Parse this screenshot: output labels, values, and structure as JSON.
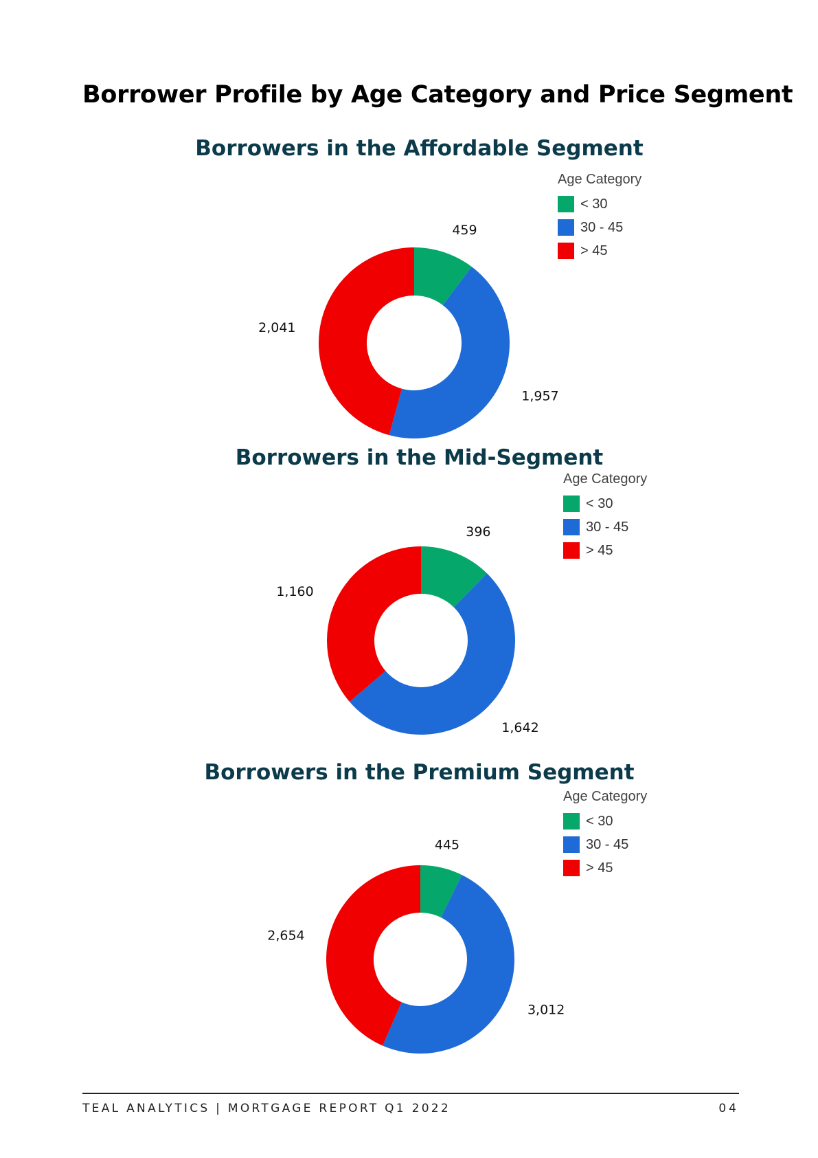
{
  "page": {
    "title": "Borrower Profile by Age Category and Price Segment",
    "footer": "TEAL ANALYTICS | MORTGAGE REPORT Q1 2022",
    "page_number": "04"
  },
  "chart_data": [
    {
      "type": "pie",
      "title": "Borrowers in the Affordable  Segment",
      "legend_title": "Age Category",
      "legend_position": "top-right",
      "donut": true,
      "categories": [
        "< 30",
        "30 - 45",
        "> 45"
      ],
      "values": [
        459,
        1957,
        2041
      ],
      "value_labels": [
        "459",
        "1,957",
        "2,041"
      ],
      "colors": [
        "#05a86a",
        "#1e6ad6",
        "#f00000"
      ]
    },
    {
      "type": "pie",
      "title": "Borrowers in the Mid-Segment",
      "legend_title": "Age Category",
      "legend_position": "top-right",
      "donut": true,
      "categories": [
        "< 30",
        "30 - 45",
        "> 45"
      ],
      "values": [
        396,
        1642,
        1160
      ],
      "value_labels": [
        "396",
        "1,642",
        "1,160"
      ],
      "colors": [
        "#05a86a",
        "#1e6ad6",
        "#f00000"
      ]
    },
    {
      "type": "pie",
      "title": "Borrowers in the Premium  Segment",
      "legend_title": "Age Category",
      "legend_position": "top-right",
      "donut": true,
      "categories": [
        "< 30",
        "30 - 45",
        "> 45"
      ],
      "values": [
        445,
        3012,
        2654
      ],
      "value_labels": [
        "445",
        "3,012",
        "2,654"
      ],
      "colors": [
        "#05a86a",
        "#1e6ad6",
        "#f00000"
      ]
    }
  ]
}
